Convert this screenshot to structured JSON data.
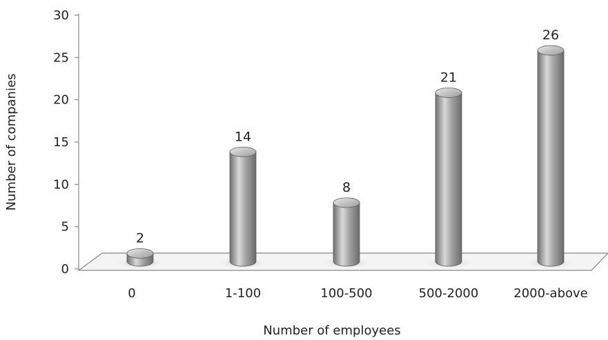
{
  "chart_data": {
    "type": "bar",
    "categories": [
      "0",
      "1-100",
      "100-500",
      "500-2000",
      "2000-above"
    ],
    "values": [
      2,
      14,
      8,
      21,
      26
    ],
    "data_labels": [
      "2",
      "14",
      "8",
      "21",
      "26"
    ],
    "title": "",
    "xlabel": "Number of employees",
    "ylabel": "Number of companies",
    "ylim": [
      0,
      30
    ],
    "yticks": [
      0,
      5,
      10,
      15,
      20,
      25,
      30
    ],
    "ytick_labels": [
      "0",
      "5",
      "10",
      "15",
      "20",
      "25",
      "30"
    ],
    "grid": false,
    "legend": "none",
    "style": "3d-cylinder",
    "colors": {
      "bar": "#9a9a9a",
      "bar_highlight": "#dcdcdc",
      "floor": "#f2f2f2",
      "axis": "#888888"
    }
  }
}
